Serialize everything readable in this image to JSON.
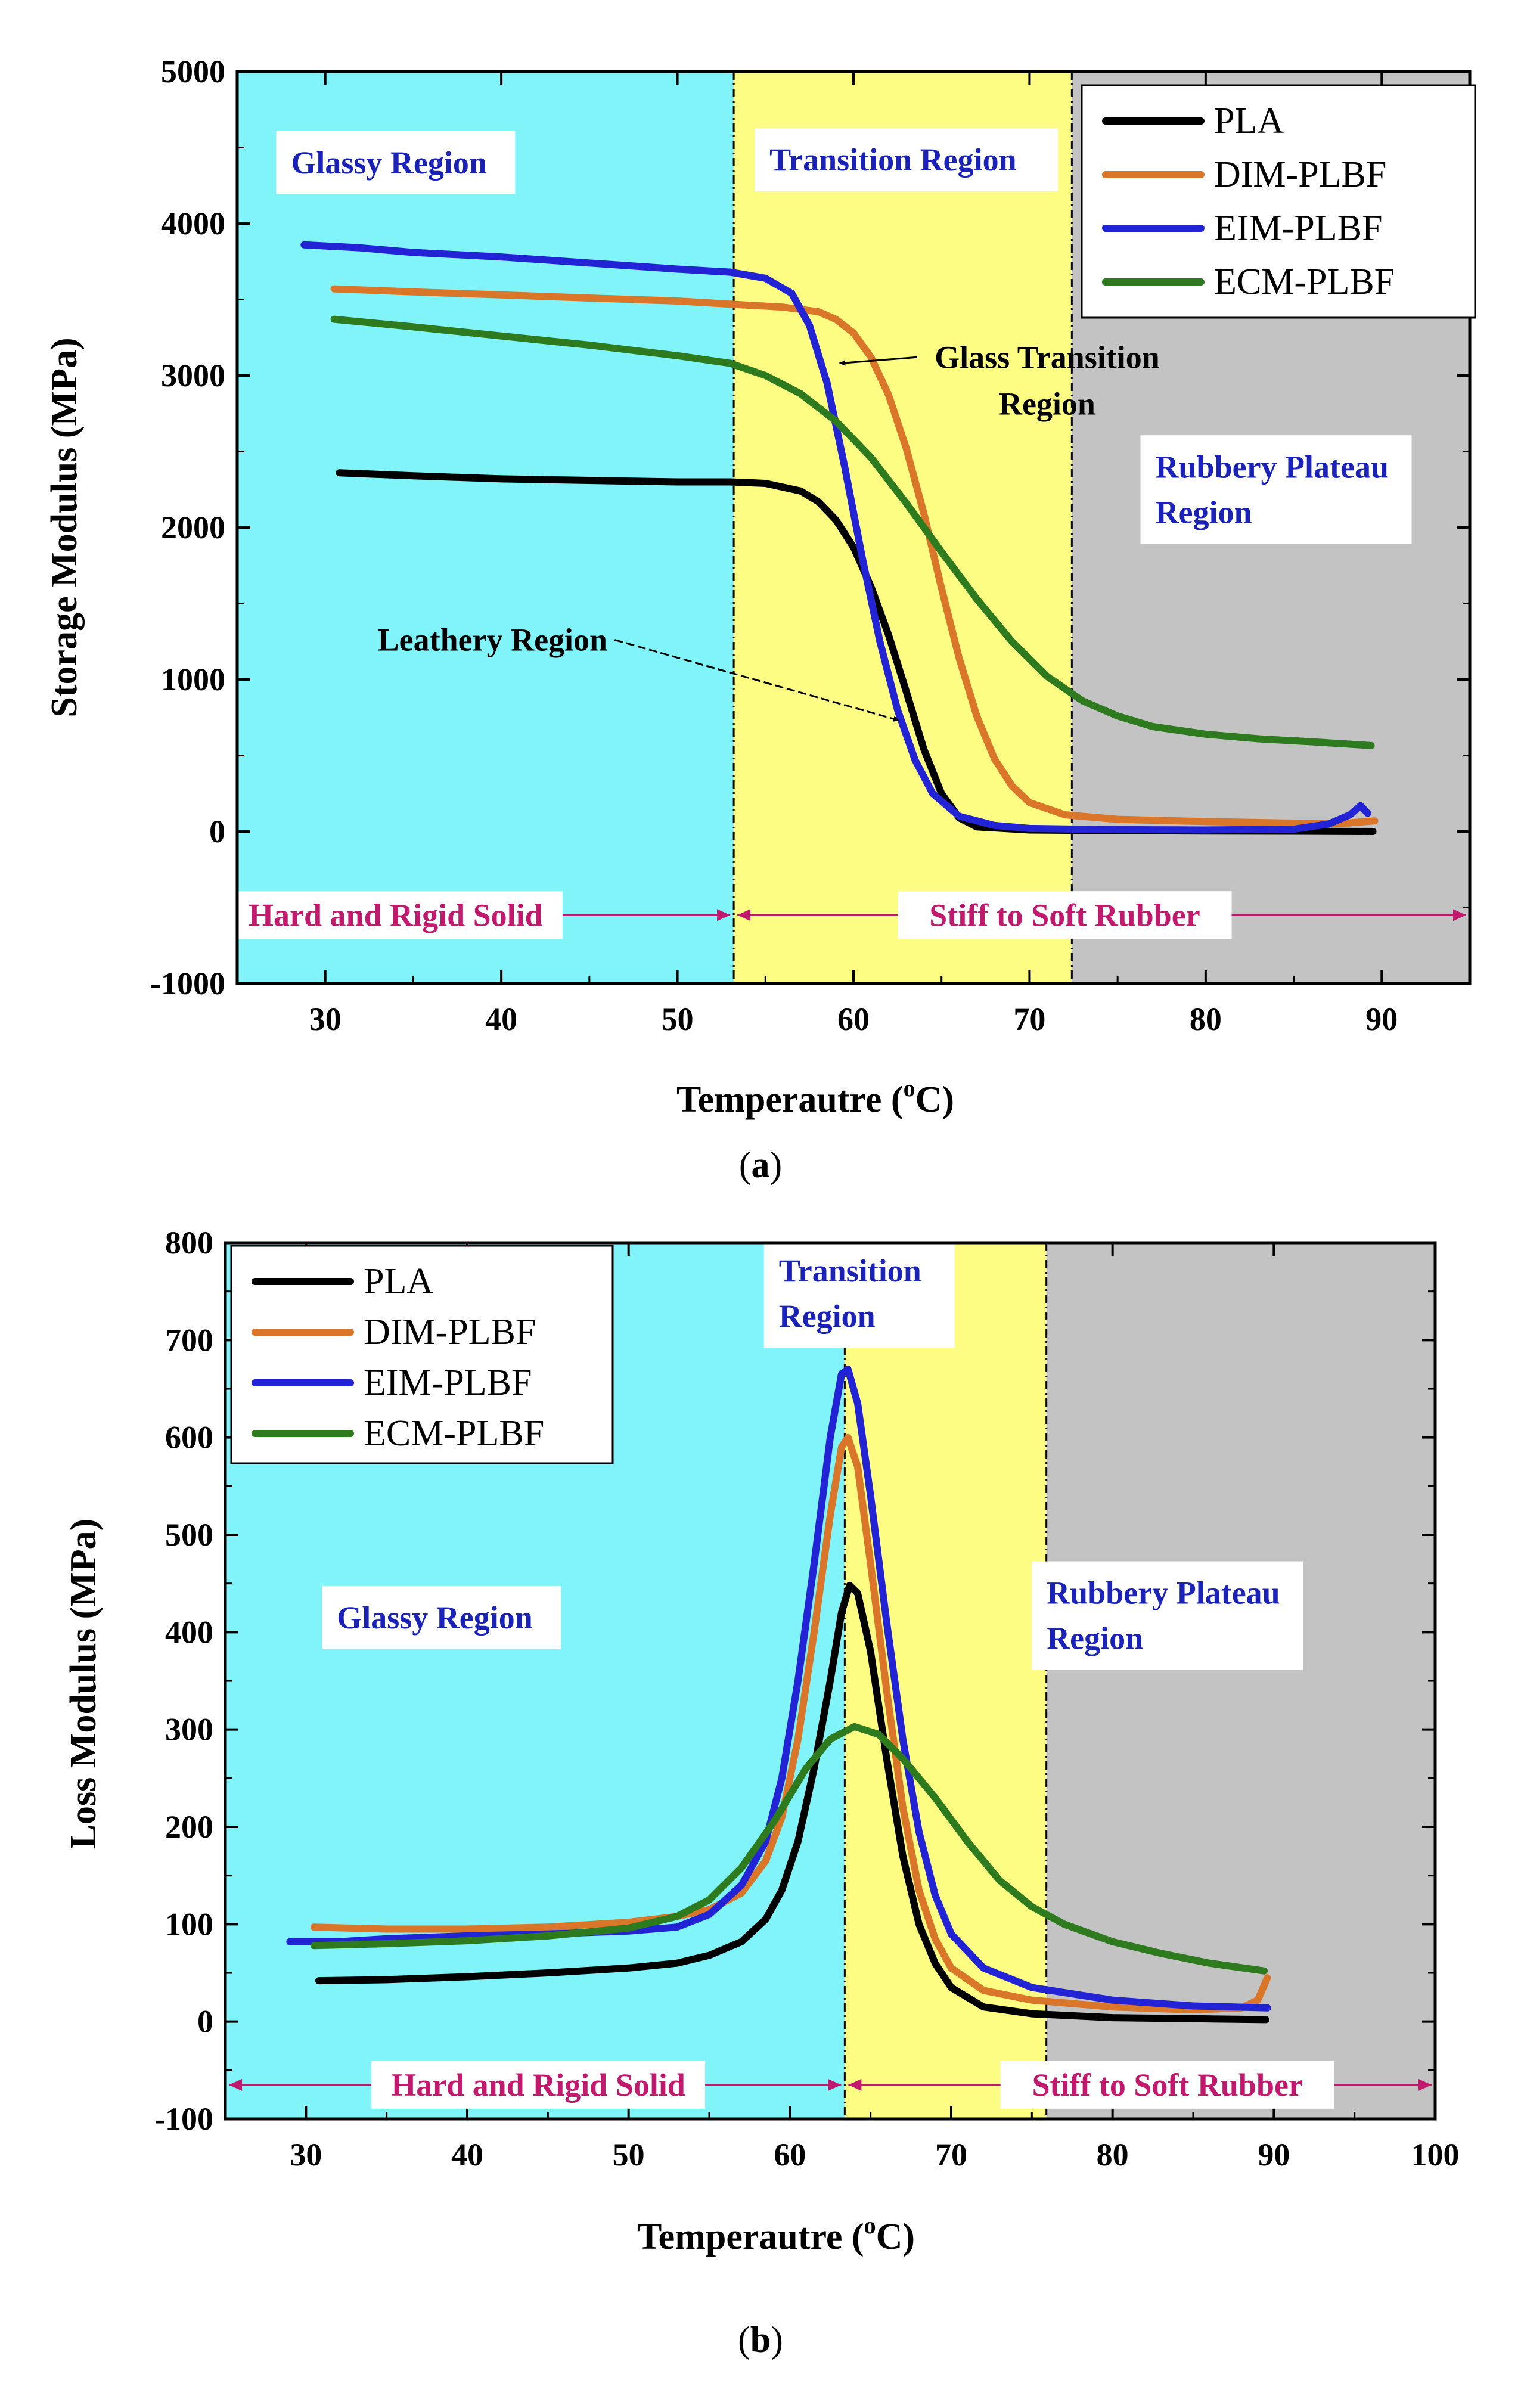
{
  "colors": {
    "glassy_bg": "#80f4f8",
    "transition_bg": "#fdfd84",
    "rubbery_bg": "#c3c3c3",
    "region_text_blue": "#1a22b8",
    "state_text_magenta": "#c0196e",
    "arrow_magenta": "#c0196e",
    "PLA": "#000000",
    "DIM-PLBF": "#d9762a",
    "EIM-PLBF": "#2323d6",
    "ECM-PLBF": "#2e7a1e"
  },
  "chart_data": [
    {
      "id": "a",
      "type": "line",
      "caption_open": "(",
      "caption_letter": "a",
      "caption_close": ")",
      "xlabel_main": "Temperautre (",
      "xlabel_sup": "o",
      "xlabel_end": "C)",
      "ylabel": "Storage Modulus (MPa)",
      "xlim": [
        25,
        95
      ],
      "ylim": [
        -1000,
        5000
      ],
      "xticks": [
        30,
        40,
        50,
        60,
        70,
        80,
        90
      ],
      "yticks": [
        -1000,
        0,
        1000,
        2000,
        3000,
        4000,
        5000
      ],
      "regions": [
        {
          "name": "glassy",
          "from": 25,
          "to": 53.2
        },
        {
          "name": "transition",
          "from": 53.2,
          "to": 72.4
        },
        {
          "name": "rubbery",
          "from": 72.4,
          "to": 95
        }
      ],
      "region_labels": [
        {
          "text": "Glassy Region",
          "lines": [
            "Glassy Region"
          ],
          "x": 34,
          "y": 4400
        },
        {
          "text": "Transition Region",
          "lines": [
            "Transition Region"
          ],
          "x": 63,
          "y": 4420
        },
        {
          "text": "Rubbery Plateau Region",
          "lines": [
            "Rubbery Plateau",
            "Region"
          ],
          "x": 84,
          "y": 2250
        }
      ],
      "state_labels": [
        {
          "text": "Hard and Rigid Solid",
          "x": 34,
          "y": -550,
          "arrow_from": 25,
          "arrow_to": 53.2
        },
        {
          "text": "Stiff to Soft Rubber",
          "x": 72,
          "y": -550,
          "arrow_from": 53.2,
          "arrow_to": 95
        }
      ],
      "annotations": [
        {
          "text": "Glass Transition Region",
          "lines": [
            "Glass Transition",
            "Region"
          ],
          "x": 71,
          "y": 3050,
          "arrow_to": [
            59.2,
            3080
          ]
        },
        {
          "text": "Leathery Region",
          "lines": [
            "Leathery Region"
          ],
          "x": 39.5,
          "y": 1190,
          "arrow_to": [
            62.6,
            730
          ]
        }
      ],
      "legend": {
        "position": "top-right",
        "entries": [
          "PLA",
          "DIM-PLBF",
          "EIM-PLBF",
          "ECM-PLBF"
        ]
      },
      "series": [
        {
          "name": "PLA",
          "points": [
            [
              30.8,
              2360
            ],
            [
              35,
              2340
            ],
            [
              40,
              2320
            ],
            [
              45,
              2310
            ],
            [
              50,
              2300
            ],
            [
              53,
              2300
            ],
            [
              55,
              2290
            ],
            [
              57,
              2240
            ],
            [
              58,
              2170
            ],
            [
              59,
              2050
            ],
            [
              60,
              1870
            ],
            [
              61,
              1610
            ],
            [
              62,
              1290
            ],
            [
              63,
              920
            ],
            [
              64,
              540
            ],
            [
              65,
              250
            ],
            [
              66,
              90
            ],
            [
              67,
              30
            ],
            [
              70,
              10
            ],
            [
              75,
              5
            ],
            [
              80,
              3
            ],
            [
              85,
              2
            ],
            [
              89.5,
              0
            ]
          ]
        },
        {
          "name": "DIM-PLBF",
          "points": [
            [
              30.5,
              3570
            ],
            [
              35,
              3550
            ],
            [
              40,
              3530
            ],
            [
              45,
              3510
            ],
            [
              50,
              3490
            ],
            [
              53,
              3470
            ],
            [
              56,
              3450
            ],
            [
              58,
              3420
            ],
            [
              59,
              3370
            ],
            [
              60,
              3280
            ],
            [
              61,
              3120
            ],
            [
              62,
              2870
            ],
            [
              63,
              2520
            ],
            [
              64,
              2090
            ],
            [
              65,
              1600
            ],
            [
              66,
              1140
            ],
            [
              67,
              760
            ],
            [
              68,
              480
            ],
            [
              69,
              300
            ],
            [
              70,
              190
            ],
            [
              72,
              110
            ],
            [
              75,
              80
            ],
            [
              80,
              65
            ],
            [
              85,
              55
            ],
            [
              88,
              55
            ],
            [
              89.6,
              70
            ]
          ]
        },
        {
          "name": "EIM-PLBF",
          "points": [
            [
              28.8,
              3860
            ],
            [
              32,
              3840
            ],
            [
              35,
              3810
            ],
            [
              40,
              3780
            ],
            [
              45,
              3740
            ],
            [
              50,
              3700
            ],
            [
              53,
              3680
            ],
            [
              55,
              3640
            ],
            [
              56.5,
              3540
            ],
            [
              57.5,
              3330
            ],
            [
              58.5,
              2950
            ],
            [
              59.5,
              2400
            ],
            [
              60.5,
              1800
            ],
            [
              61.5,
              1250
            ],
            [
              62.5,
              800
            ],
            [
              63.5,
              470
            ],
            [
              64.5,
              250
            ],
            [
              66,
              100
            ],
            [
              68,
              40
            ],
            [
              70,
              20
            ],
            [
              75,
              12
            ],
            [
              80,
              10
            ],
            [
              85,
              15
            ],
            [
              87,
              50
            ],
            [
              88.2,
              110
            ],
            [
              88.8,
              170
            ],
            [
              89.2,
              120
            ]
          ]
        },
        {
          "name": "ECM-PLBF",
          "points": [
            [
              30.5,
              3370
            ],
            [
              35,
              3320
            ],
            [
              40,
              3260
            ],
            [
              45,
              3200
            ],
            [
              50,
              3130
            ],
            [
              53,
              3080
            ],
            [
              55,
              3000
            ],
            [
              57,
              2880
            ],
            [
              59,
              2700
            ],
            [
              61,
              2460
            ],
            [
              63,
              2160
            ],
            [
              65,
              1840
            ],
            [
              67,
              1530
            ],
            [
              69,
              1250
            ],
            [
              71,
              1020
            ],
            [
              73,
              860
            ],
            [
              75,
              760
            ],
            [
              77,
              690
            ],
            [
              80,
              640
            ],
            [
              83,
              610
            ],
            [
              86,
              590
            ],
            [
              89.4,
              565
            ]
          ]
        }
      ]
    },
    {
      "id": "b",
      "type": "line",
      "caption_open": "(",
      "caption_letter": "b",
      "caption_close": ")",
      "xlabel_main": "Temperautre (",
      "xlabel_sup": "o",
      "xlabel_end": "C)",
      "ylabel": "Loss Modulus (MPa)",
      "xlim": [
        25,
        100
      ],
      "ylim": [
        -100,
        800
      ],
      "xticks": [
        30,
        40,
        50,
        60,
        70,
        80,
        90,
        100
      ],
      "yticks": [
        -100,
        0,
        100,
        200,
        300,
        400,
        500,
        600,
        700,
        800
      ],
      "regions": [
        {
          "name": "glassy",
          "from": 25,
          "to": 63.4
        },
        {
          "name": "transition",
          "from": 63.4,
          "to": 75.9
        },
        {
          "name": "rubbery",
          "from": 75.9,
          "to": 100
        }
      ],
      "region_labels": [
        {
          "text": "Glassy Region",
          "lines": [
            "Glassy Region"
          ],
          "x": 38.4,
          "y": 415
        },
        {
          "text": "Transition Region",
          "lines": [
            "Transition",
            "Region"
          ],
          "x": 64.3,
          "y": 748
        },
        {
          "text": "Rubbery Plateau Region",
          "lines": [
            "Rubbery Plateau",
            "Region"
          ],
          "x": 83.4,
          "y": 417
        }
      ],
      "state_labels": [
        {
          "text": "Hard and Rigid Solid",
          "x": 44.4,
          "y": -65,
          "arrow_from": 25,
          "arrow_to": 63.4
        },
        {
          "text": "Stiff to Soft Rubber",
          "x": 83.4,
          "y": -65,
          "arrow_from": 63.4,
          "arrow_to": 100
        }
      ],
      "annotations": [],
      "legend": {
        "position": "top-left",
        "entries": [
          "PLA",
          "DIM-PLBF",
          "EIM-PLBF",
          "ECM-PLBF"
        ]
      },
      "series": [
        {
          "name": "PLA",
          "points": [
            [
              30.8,
              42
            ],
            [
              35,
              43
            ],
            [
              40,
              46
            ],
            [
              45,
              50
            ],
            [
              50,
              55
            ],
            [
              53,
              60
            ],
            [
              55,
              68
            ],
            [
              57,
              82
            ],
            [
              58.5,
              105
            ],
            [
              59.5,
              135
            ],
            [
              60.5,
              185
            ],
            [
              61.5,
              260
            ],
            [
              62.5,
              350
            ],
            [
              63.2,
              420
            ],
            [
              63.7,
              448
            ],
            [
              64.2,
              440
            ],
            [
              65,
              380
            ],
            [
              66,
              270
            ],
            [
              67,
              170
            ],
            [
              68,
              100
            ],
            [
              69,
              60
            ],
            [
              70,
              35
            ],
            [
              72,
              15
            ],
            [
              75,
              8
            ],
            [
              80,
              4
            ],
            [
              85,
              3
            ],
            [
              89.5,
              2
            ]
          ]
        },
        {
          "name": "DIM-PLBF",
          "points": [
            [
              30.5,
              97
            ],
            [
              35,
              95
            ],
            [
              40,
              95
            ],
            [
              45,
              97
            ],
            [
              50,
              102
            ],
            [
              53,
              108
            ],
            [
              55,
              115
            ],
            [
              57,
              132
            ],
            [
              58.5,
              165
            ],
            [
              59.5,
              210
            ],
            [
              60.5,
              290
            ],
            [
              61.5,
              400
            ],
            [
              62.5,
              520
            ],
            [
              63.2,
              590
            ],
            [
              63.6,
              600
            ],
            [
              64.2,
              570
            ],
            [
              65,
              470
            ],
            [
              66,
              340
            ],
            [
              67,
              220
            ],
            [
              68,
              135
            ],
            [
              69,
              85
            ],
            [
              70,
              55
            ],
            [
              72,
              32
            ],
            [
              75,
              22
            ],
            [
              80,
              15
            ],
            [
              85,
              12
            ],
            [
              88,
              14
            ],
            [
              89,
              22
            ],
            [
              89.6,
              45
            ]
          ]
        },
        {
          "name": "EIM-PLBF",
          "points": [
            [
              29,
              82
            ],
            [
              32,
              82
            ],
            [
              35,
              85
            ],
            [
              40,
              88
            ],
            [
              45,
              90
            ],
            [
              50,
              93
            ],
            [
              53,
              97
            ],
            [
              55,
              110
            ],
            [
              57,
              140
            ],
            [
              58.5,
              185
            ],
            [
              59.5,
              250
            ],
            [
              60.5,
              350
            ],
            [
              61.5,
              470
            ],
            [
              62.5,
              600
            ],
            [
              63.2,
              665
            ],
            [
              63.6,
              670
            ],
            [
              64.2,
              635
            ],
            [
              65,
              540
            ],
            [
              66,
              410
            ],
            [
              67,
              290
            ],
            [
              68,
              195
            ],
            [
              69,
              130
            ],
            [
              70,
              90
            ],
            [
              72,
              55
            ],
            [
              75,
              35
            ],
            [
              80,
              22
            ],
            [
              85,
              16
            ],
            [
              89.6,
              14
            ]
          ]
        },
        {
          "name": "ECM-PLBF",
          "points": [
            [
              30.5,
              78
            ],
            [
              35,
              80
            ],
            [
              40,
              83
            ],
            [
              45,
              88
            ],
            [
              50,
              96
            ],
            [
              53,
              108
            ],
            [
              55,
              125
            ],
            [
              57,
              158
            ],
            [
              59,
              205
            ],
            [
              61,
              260
            ],
            [
              62.5,
              290
            ],
            [
              64,
              303
            ],
            [
              65.5,
              295
            ],
            [
              67,
              270
            ],
            [
              69,
              230
            ],
            [
              71,
              185
            ],
            [
              73,
              145
            ],
            [
              75,
              118
            ],
            [
              77,
              100
            ],
            [
              80,
              82
            ],
            [
              83,
              70
            ],
            [
              86,
              60
            ],
            [
              89.4,
              52
            ]
          ]
        }
      ]
    }
  ]
}
